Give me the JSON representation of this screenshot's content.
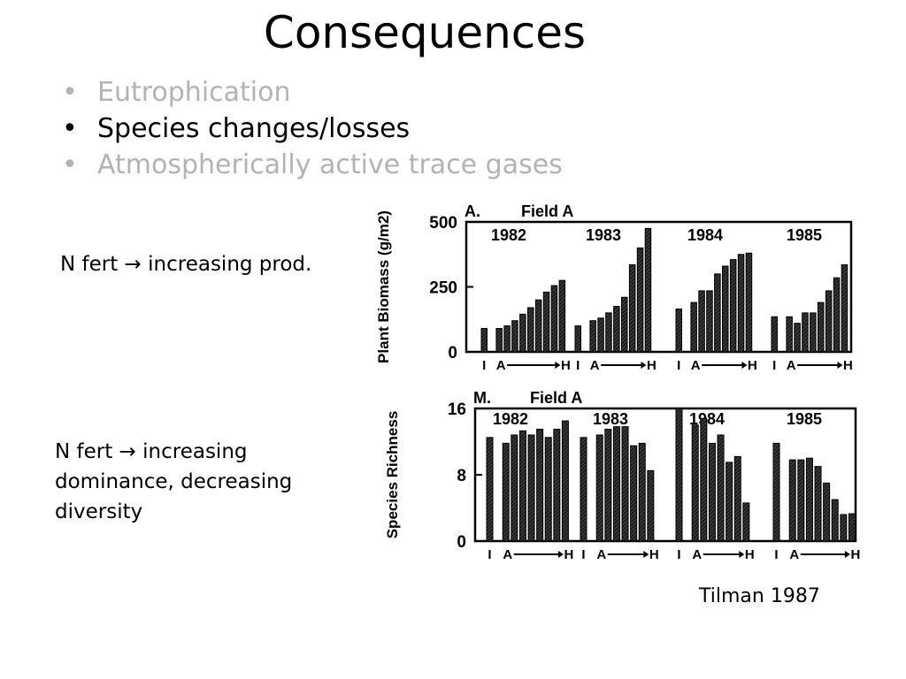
{
  "slide": {
    "title": "Consequences",
    "bullets": [
      {
        "text": "Eutrophication",
        "color": "#b3b3b3"
      },
      {
        "text": "Species changes/losses",
        "color": "#000000"
      },
      {
        "text": "Atmospherically active trace gases",
        "color": "#b3b3b3"
      }
    ],
    "notes": {
      "biomass": "N fert → increasing prod.",
      "richness_lines": [
        "N fert → increasing",
        "dominance, decreasing",
        "diversity"
      ]
    },
    "credit": "Tilman 1987"
  },
  "chart_data": [
    {
      "type": "bar",
      "panel_label": "A.",
      "title": "Field A",
      "ylabel": "Plant Biomass (g/m2)",
      "yticks": [
        0,
        250,
        500
      ],
      "ylim": [
        0,
        500
      ],
      "xtick_labels": [
        "I",
        "A",
        "H"
      ],
      "groups": [
        {
          "year": "1982",
          "values": [
            90,
            90,
            100,
            120,
            145,
            170,
            200,
            230,
            255,
            275
          ]
        },
        {
          "year": "1983",
          "values": [
            100,
            120,
            130,
            150,
            175,
            210,
            335,
            400,
            475
          ]
        },
        {
          "year": "1984",
          "values": [
            165,
            190,
            235,
            235,
            300,
            330,
            355,
            375,
            380
          ]
        },
        {
          "year": "1985",
          "values": [
            135,
            135,
            110,
            150,
            150,
            190,
            235,
            285,
            335
          ]
        }
      ]
    },
    {
      "type": "bar",
      "panel_label": "M.",
      "title": "Field A",
      "ylabel": "Species Richness",
      "yticks": [
        0,
        8,
        16
      ],
      "ylim": [
        0,
        16
      ],
      "xtick_labels": [
        "I",
        "A",
        "H"
      ],
      "groups": [
        {
          "year": "1982",
          "values": [
            12.5,
            11.8,
            12.8,
            13.3,
            12.8,
            13.5,
            12.5,
            13.5,
            14.5
          ]
        },
        {
          "year": "1983",
          "values": [
            12.5,
            12.8,
            13.5,
            13.8,
            13.8,
            11.5,
            11.8,
            8.5
          ]
        },
        {
          "year": "1984",
          "values": [
            16,
            14,
            14.8,
            11.8,
            12.8,
            9.5,
            10.2,
            4.6
          ]
        },
        {
          "year": "1985",
          "values": [
            11.8,
            9.8,
            9.8,
            10,
            9,
            7,
            5,
            3.2,
            3.3
          ]
        }
      ]
    }
  ]
}
